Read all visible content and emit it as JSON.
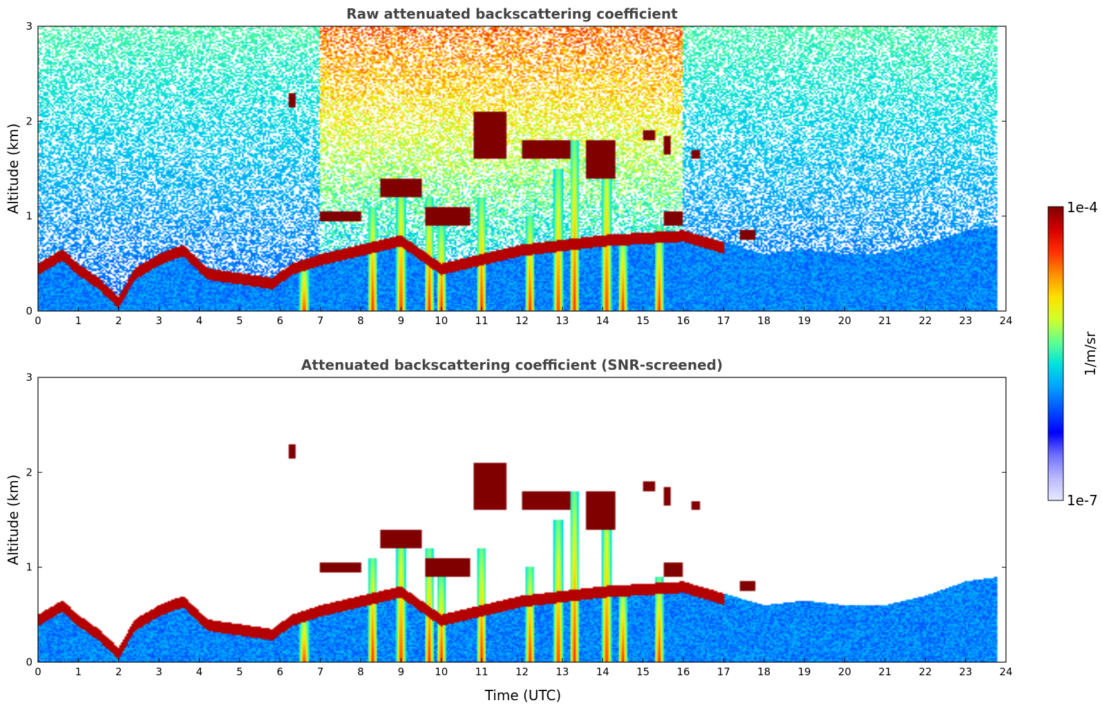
{
  "chart_data": [
    {
      "type": "heatmap",
      "title": "Raw attenuated backscattering coefficient",
      "xlabel": "",
      "ylabel": "Altitude (km)",
      "xlim": [
        0,
        24
      ],
      "ylim": [
        0,
        3
      ],
      "x_ticks": [
        "0",
        "1",
        "2",
        "3",
        "4",
        "5",
        "6",
        "7",
        "8",
        "9",
        "10",
        "11",
        "12",
        "13",
        "14",
        "15",
        "16",
        "17",
        "18",
        "19",
        "20",
        "21",
        "22",
        "23",
        "24"
      ],
      "y_ticks": [
        "0",
        "1",
        "2",
        "3"
      ],
      "color_scale": "log",
      "color_range": [
        1e-07,
        0.0001
      ],
      "screened": false,
      "noise_level": 1.0,
      "boundary_layer_top_km": [
        [
          0,
          0.5
        ],
        [
          0.6,
          0.65
        ],
        [
          1.0,
          0.5
        ],
        [
          1.5,
          0.35
        ],
        [
          2.0,
          0.15
        ],
        [
          2.4,
          0.45
        ],
        [
          3.0,
          0.6
        ],
        [
          3.6,
          0.7
        ],
        [
          4.2,
          0.45
        ],
        [
          5.0,
          0.4
        ],
        [
          5.8,
          0.35
        ],
        [
          6.3,
          0.5
        ],
        [
          7.0,
          0.6
        ],
        [
          8.0,
          0.7
        ],
        [
          9.0,
          0.8
        ],
        [
          10.0,
          0.5
        ],
        [
          11.0,
          0.6
        ],
        [
          12.0,
          0.7
        ],
        [
          13.0,
          0.75
        ],
        [
          14.0,
          0.8
        ],
        [
          16.0,
          0.85
        ],
        [
          18.0,
          0.6
        ],
        [
          19.0,
          0.65
        ],
        [
          20.0,
          0.6
        ],
        [
          21.0,
          0.6
        ],
        [
          22.0,
          0.7
        ],
        [
          23.0,
          0.85
        ],
        [
          23.8,
          0.9
        ]
      ],
      "precip_columns": [
        {
          "t": 6.6,
          "top": 0.5
        },
        {
          "t": 8.3,
          "top": 1.1
        },
        {
          "t": 9.0,
          "top": 1.4
        },
        {
          "t": 9.7,
          "top": 1.2
        },
        {
          "t": 10.0,
          "top": 0.9
        },
        {
          "t": 11.0,
          "top": 1.2
        },
        {
          "t": 12.2,
          "top": 1.0
        },
        {
          "t": 12.9,
          "top": 1.5
        },
        {
          "t": 13.3,
          "top": 1.8
        },
        {
          "t": 14.1,
          "top": 1.8
        },
        {
          "t": 14.5,
          "top": 0.8
        },
        {
          "t": 15.4,
          "top": 0.9
        }
      ],
      "cloud_segments": [
        {
          "t0": 6.2,
          "t1": 6.4,
          "z0": 2.15,
          "z1": 2.3
        },
        {
          "t0": 7.0,
          "t1": 8.0,
          "z0": 0.95,
          "z1": 1.05
        },
        {
          "t0": 8.5,
          "t1": 9.5,
          "z0": 1.2,
          "z1": 1.4
        },
        {
          "t0": 9.6,
          "t1": 10.7,
          "z0": 0.9,
          "z1": 1.1
        },
        {
          "t0": 10.8,
          "t1": 11.6,
          "z0": 1.6,
          "z1": 2.1
        },
        {
          "t0": 12.0,
          "t1": 13.2,
          "z0": 1.6,
          "z1": 1.8
        },
        {
          "t0": 13.6,
          "t1": 14.3,
          "z0": 1.4,
          "z1": 1.8
        },
        {
          "t0": 15.0,
          "t1": 15.3,
          "z0": 1.8,
          "z1": 1.9
        },
        {
          "t0": 15.5,
          "t1": 15.7,
          "z0": 1.65,
          "z1": 1.85
        },
        {
          "t0": 15.5,
          "t1": 16.0,
          "z0": 0.9,
          "z1": 1.05
        },
        {
          "t0": 16.2,
          "t1": 16.4,
          "z0": 1.6,
          "z1": 1.7
        },
        {
          "t0": 17.4,
          "t1": 17.8,
          "z0": 0.75,
          "z1": 0.85
        }
      ]
    },
    {
      "type": "heatmap",
      "title": "Attenuated backscattering coefficient (SNR-screened)",
      "xlabel": "Time (UTC)",
      "ylabel": "Altitude (km)",
      "xlim": [
        0,
        24
      ],
      "ylim": [
        0,
        3
      ],
      "x_ticks": [
        "0",
        "1",
        "2",
        "3",
        "4",
        "5",
        "6",
        "7",
        "8",
        "9",
        "10",
        "11",
        "12",
        "13",
        "14",
        "15",
        "16",
        "17",
        "18",
        "19",
        "20",
        "21",
        "22",
        "23",
        "24"
      ],
      "y_ticks": [
        "0",
        "1",
        "2",
        "3"
      ],
      "color_scale": "log",
      "color_range": [
        1e-07,
        0.0001
      ],
      "screened": true,
      "noise_level": 0.0,
      "boundary_layer_top_km": [
        [
          0,
          0.5
        ],
        [
          0.6,
          0.65
        ],
        [
          1.0,
          0.5
        ],
        [
          1.5,
          0.35
        ],
        [
          2.0,
          0.15
        ],
        [
          2.4,
          0.45
        ],
        [
          3.0,
          0.6
        ],
        [
          3.6,
          0.7
        ],
        [
          4.2,
          0.45
        ],
        [
          5.0,
          0.4
        ],
        [
          5.8,
          0.35
        ],
        [
          6.3,
          0.5
        ],
        [
          7.0,
          0.6
        ],
        [
          8.0,
          0.7
        ],
        [
          9.0,
          0.8
        ],
        [
          10.0,
          0.5
        ],
        [
          11.0,
          0.6
        ],
        [
          12.0,
          0.7
        ],
        [
          13.0,
          0.75
        ],
        [
          14.0,
          0.8
        ],
        [
          16.0,
          0.85
        ],
        [
          18.0,
          0.6
        ],
        [
          19.0,
          0.65
        ],
        [
          20.0,
          0.6
        ],
        [
          21.0,
          0.6
        ],
        [
          22.0,
          0.7
        ],
        [
          23.0,
          0.85
        ],
        [
          23.8,
          0.9
        ]
      ],
      "precip_columns": [
        {
          "t": 6.6,
          "top": 0.5
        },
        {
          "t": 8.3,
          "top": 1.1
        },
        {
          "t": 9.0,
          "top": 1.4
        },
        {
          "t": 9.7,
          "top": 1.2
        },
        {
          "t": 10.0,
          "top": 0.9
        },
        {
          "t": 11.0,
          "top": 1.2
        },
        {
          "t": 12.2,
          "top": 1.0
        },
        {
          "t": 12.9,
          "top": 1.5
        },
        {
          "t": 13.3,
          "top": 1.8
        },
        {
          "t": 14.1,
          "top": 1.8
        },
        {
          "t": 14.5,
          "top": 0.8
        },
        {
          "t": 15.4,
          "top": 0.9
        }
      ],
      "cloud_segments": [
        {
          "t0": 6.2,
          "t1": 6.4,
          "z0": 2.15,
          "z1": 2.3
        },
        {
          "t0": 7.0,
          "t1": 8.0,
          "z0": 0.95,
          "z1": 1.05
        },
        {
          "t0": 8.5,
          "t1": 9.5,
          "z0": 1.2,
          "z1": 1.4
        },
        {
          "t0": 9.6,
          "t1": 10.7,
          "z0": 0.9,
          "z1": 1.1
        },
        {
          "t0": 10.8,
          "t1": 11.6,
          "z0": 1.6,
          "z1": 2.1
        },
        {
          "t0": 12.0,
          "t1": 13.2,
          "z0": 1.6,
          "z1": 1.8
        },
        {
          "t0": 13.6,
          "t1": 14.3,
          "z0": 1.4,
          "z1": 1.8
        },
        {
          "t0": 15.0,
          "t1": 15.3,
          "z0": 1.8,
          "z1": 1.9
        },
        {
          "t0": 15.5,
          "t1": 15.7,
          "z0": 1.65,
          "z1": 1.85
        },
        {
          "t0": 15.5,
          "t1": 16.0,
          "z0": 0.9,
          "z1": 1.05
        },
        {
          "t0": 16.2,
          "t1": 16.4,
          "z0": 1.6,
          "z1": 1.7
        },
        {
          "t0": 17.4,
          "t1": 17.8,
          "z0": 0.75,
          "z1": 0.85
        }
      ]
    }
  ],
  "colorbar": {
    "label": "1/m/sr",
    "max_label": "1e-4",
    "min_label": "1e-7",
    "colors": [
      "#e8e8ff",
      "#b8b8ff",
      "#7070ff",
      "#0000ff",
      "#0050ff",
      "#00a0ff",
      "#00e0e0",
      "#60ff90",
      "#d0ff30",
      "#ffe000",
      "#ff9000",
      "#ff3000",
      "#d00000",
      "#800000"
    ]
  }
}
